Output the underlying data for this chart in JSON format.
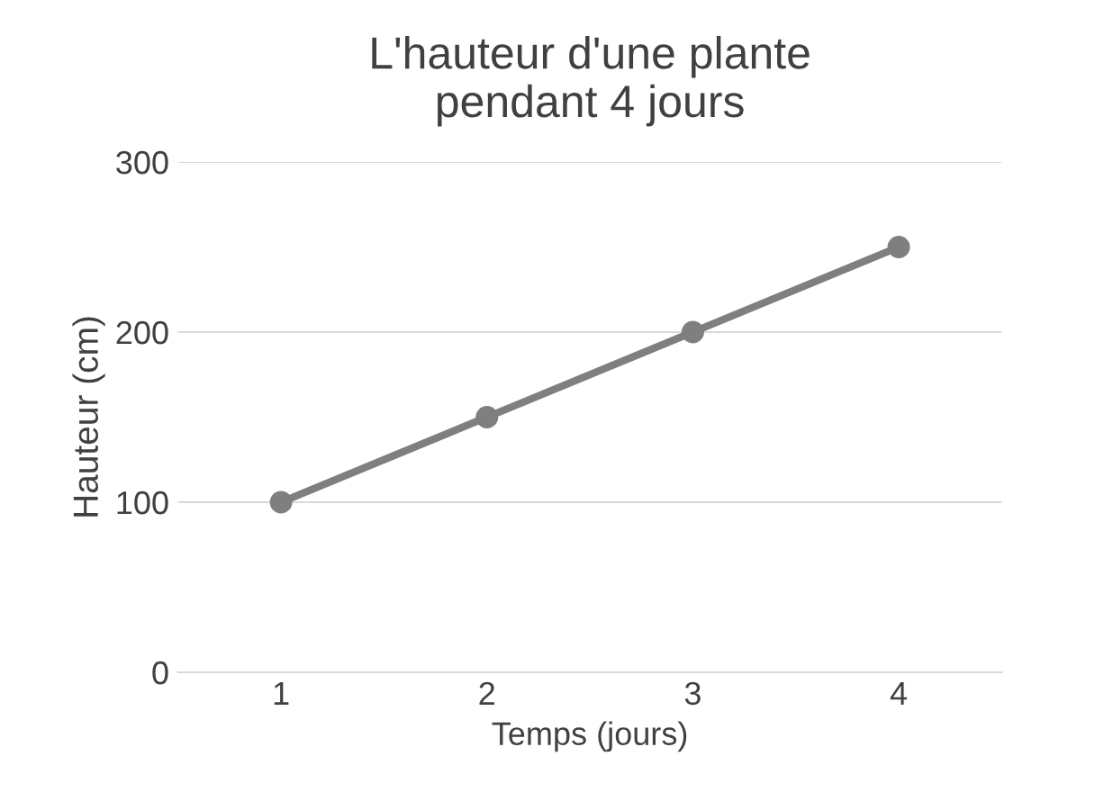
{
  "chart_data": {
    "type": "line",
    "title": "L'hauteur d'une plante\npendant 4 jours",
    "xlabel": "Temps (jours)",
    "ylabel": "Hauteur (cm)",
    "categories": [
      "1",
      "2",
      "3",
      "4"
    ],
    "series": [
      {
        "color": "#7f7f7f",
        "values": [
          100,
          150,
          200,
          250
        ]
      }
    ],
    "ylim": [
      0,
      300
    ],
    "yticks": [
      0,
      100,
      200,
      300
    ],
    "grid": "y",
    "marker": "circle",
    "line_style": "solid"
  }
}
